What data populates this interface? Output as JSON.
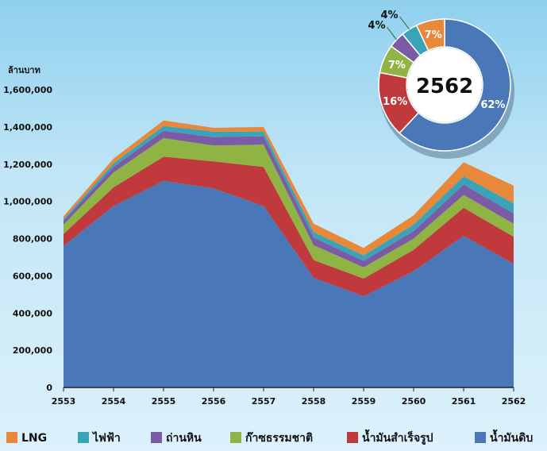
{
  "chart_data": [
    {
      "type": "area",
      "stacked": true,
      "ylabel": "ล้านบาท",
      "x": [
        "2553",
        "2554",
        "2555",
        "2556",
        "2557",
        "2558",
        "2559",
        "2560",
        "2561",
        "2562"
      ],
      "ylim": [
        0,
        1600000
      ],
      "yticks": [
        "0",
        "200,000",
        "400,000",
        "600,000",
        "800,000",
        "1,000,000",
        "1,200,000",
        "1,400,000",
        "1,600,000"
      ],
      "series": [
        {
          "name": "น้ำมันดิบ",
          "color": "#4a77b8",
          "values": [
            760000,
            975000,
            1110000,
            1070000,
            975000,
            590000,
            490000,
            625000,
            815000,
            665000
          ]
        },
        {
          "name": "น้ำมันสำเร็จรูป",
          "color": "#c0393d",
          "values": [
            65000,
            100000,
            130000,
            145000,
            210000,
            95000,
            95000,
            115000,
            150000,
            145000
          ]
        },
        {
          "name": "ก๊าซธรรมชาติ",
          "color": "#8fb443",
          "values": [
            50000,
            80000,
            100000,
            85000,
            120000,
            80000,
            60000,
            60000,
            70000,
            70000
          ]
        },
        {
          "name": "ถ่านหิน",
          "color": "#7b5aa6",
          "values": [
            20000,
            30000,
            40000,
            45000,
            45000,
            40000,
            35000,
            40000,
            55000,
            55000
          ]
        },
        {
          "name": "ไฟฟ้า",
          "color": "#3aa3b8",
          "values": [
            10000,
            20000,
            25000,
            30000,
            25000,
            30000,
            30000,
            35000,
            45000,
            55000
          ]
        },
        {
          "name": "LNG",
          "color": "#e8883a",
          "values": [
            15000,
            25000,
            30000,
            20000,
            25000,
            45000,
            40000,
            50000,
            75000,
            95000
          ]
        }
      ],
      "legend_position": "bottom",
      "grid": false
    },
    {
      "type": "pie",
      "donut": true,
      "center_label": "2562",
      "slices": [
        {
          "name": "น้ำมันดิบ",
          "value": 62,
          "label": "62%",
          "color": "#4a77b8"
        },
        {
          "name": "น้ำมันสำเร็จรูป",
          "value": 16,
          "label": "16%",
          "color": "#c0393d"
        },
        {
          "name": "ก๊าซธรรมชาติ",
          "value": 7,
          "label": "7%",
          "color": "#8fb443"
        },
        {
          "name": "ถ่านหิน",
          "value": 4,
          "label": "4%",
          "color": "#7b5aa6"
        },
        {
          "name": "ไฟฟ้า",
          "value": 4,
          "label": "4%",
          "color": "#3aa3b8"
        },
        {
          "name": "LNG",
          "value": 7,
          "label": "7%",
          "color": "#e8883a"
        }
      ]
    }
  ]
}
